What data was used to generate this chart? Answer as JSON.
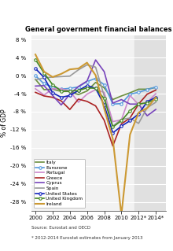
{
  "title": "General government financial balances",
  "ylabel": "% of GDP",
  "source_text": "Source: Eurostat and OECD\n* 2012-2014 Eurostat estimates from January 2013",
  "ylim": [
    -30,
    9
  ],
  "yticks": [
    8,
    4,
    0,
    -4,
    -8,
    -12,
    -16,
    -20,
    -24,
    -28
  ],
  "ytick_labels": [
    "8 %",
    "4 %",
    "0 %",
    "-4 %",
    "-8 %",
    "-12 %",
    "-16 %",
    "-20 %",
    "-24 %",
    "-28 %"
  ],
  "xlim": [
    1999.5,
    2015.2
  ],
  "xtick_vals": [
    2000,
    2002,
    2004,
    2006,
    2008,
    2010,
    2012,
    2014
  ],
  "xtick_labels": [
    "2000",
    "2002",
    "2004",
    "2006",
    "2008",
    "2010",
    "2012*",
    "2014*"
  ],
  "shaded_start": 2011.5,
  "bg_color": "#f2f2f2",
  "shaded_color": "#e0e0e0",
  "grid_color": "#ffffff",
  "series": {
    "Italy": {
      "color": "#6b8f3e",
      "linewidth": 1.2,
      "marker": null,
      "markersize": 0,
      "years": [
        2000,
        2001,
        2002,
        2003,
        2004,
        2005,
        2006,
        2007,
        2008,
        2009,
        2010,
        2011,
        2012,
        2013,
        2014
      ],
      "values": [
        -0.8,
        -3.1,
        -3.0,
        -3.5,
        -3.5,
        -4.2,
        -3.4,
        -1.5,
        -2.7,
        -5.3,
        -4.5,
        -3.8,
        -3.0,
        -3.0,
        -2.6
      ]
    },
    "Eurozone": {
      "color": "#5599dd",
      "linewidth": 1.2,
      "marker": "o",
      "markersize": 2.5,
      "years": [
        2000,
        2001,
        2002,
        2003,
        2004,
        2005,
        2006,
        2007,
        2008,
        2009,
        2010,
        2011,
        2012,
        2013,
        2014
      ],
      "values": [
        0.0,
        -1.8,
        -2.5,
        -3.0,
        -2.8,
        -2.5,
        -1.3,
        -0.6,
        -2.0,
        -6.3,
        -6.2,
        -4.1,
        -3.7,
        -3.1,
        -2.5
      ]
    },
    "Portugal": {
      "color": "#cc88cc",
      "linewidth": 1.2,
      "marker": null,
      "markersize": 0,
      "years": [
        2000,
        2001,
        2002,
        2003,
        2004,
        2005,
        2006,
        2007,
        2008,
        2009,
        2010,
        2011,
        2012,
        2013,
        2014
      ],
      "values": [
        -2.9,
        -4.3,
        -2.9,
        -2.9,
        -3.4,
        -5.9,
        -4.1,
        -3.1,
        -3.7,
        -10.2,
        -9.8,
        -4.4,
        -6.4,
        -5.9,
        -4.0
      ]
    },
    "Greece": {
      "color": "#aa2222",
      "linewidth": 1.2,
      "marker": null,
      "markersize": 0,
      "years": [
        2000,
        2001,
        2002,
        2003,
        2004,
        2005,
        2006,
        2007,
        2008,
        2009,
        2010,
        2011,
        2012,
        2013,
        2014
      ],
      "values": [
        -3.7,
        -4.5,
        -4.8,
        -5.6,
        -7.5,
        -5.2,
        -5.7,
        -6.7,
        -9.9,
        -15.6,
        -10.7,
        -9.4,
        -6.3,
        -4.1,
        -3.2
      ]
    },
    "Cyprus": {
      "color": "#7744bb",
      "linewidth": 1.2,
      "marker": null,
      "markersize": 0,
      "years": [
        2000,
        2001,
        2002,
        2003,
        2004,
        2005,
        2006,
        2007,
        2008,
        2009,
        2010,
        2011,
        2012,
        2013,
        2014
      ],
      "values": [
        -2.3,
        -2.2,
        -4.4,
        -6.5,
        -4.1,
        -2.4,
        -1.2,
        3.5,
        0.9,
        -6.1,
        -5.3,
        -6.3,
        -6.3,
        -8.9,
        -7.5
      ]
    },
    "Spain": {
      "color": "#999999",
      "linewidth": 1.2,
      "marker": null,
      "markersize": 0,
      "years": [
        2000,
        2001,
        2002,
        2003,
        2004,
        2005,
        2006,
        2007,
        2008,
        2009,
        2010,
        2011,
        2012,
        2013,
        2014
      ],
      "values": [
        -0.9,
        -0.5,
        -0.3,
        -0.2,
        -0.1,
        1.3,
        2.4,
        1.9,
        -4.5,
        -11.2,
        -9.7,
        -9.4,
        -10.6,
        -7.1,
        -5.9
      ]
    },
    "United States": {
      "color": "#1122bb",
      "linewidth": 1.2,
      "marker": "o",
      "markersize": 2.5,
      "years": [
        2000,
        2001,
        2002,
        2003,
        2004,
        2005,
        2006,
        2007,
        2008,
        2009,
        2010,
        2011,
        2012,
        2013,
        2014
      ],
      "values": [
        1.6,
        -0.4,
        -3.8,
        -4.8,
        -4.4,
        -3.3,
        -2.2,
        -2.8,
        -6.5,
        -12.7,
        -11.2,
        -10.0,
        -8.5,
        -5.8,
        -4.8
      ]
    },
    "United Kingdom": {
      "color": "#448822",
      "linewidth": 1.2,
      "marker": "o",
      "markersize": 2.5,
      "years": [
        2000,
        2001,
        2002,
        2003,
        2004,
        2005,
        2006,
        2007,
        2008,
        2009,
        2010,
        2011,
        2012,
        2013,
        2014
      ],
      "values": [
        3.6,
        0.6,
        -2.0,
        -3.4,
        -3.4,
        -3.3,
        -2.7,
        -2.8,
        -5.1,
        -11.4,
        -10.0,
        -7.8,
        -6.3,
        -6.0,
        -5.2
      ]
    },
    "Ireland": {
      "color": "#cc9933",
      "linewidth": 1.5,
      "marker": null,
      "markersize": 0,
      "years": [
        2000,
        2001,
        2002,
        2003,
        2004,
        2005,
        2006,
        2007,
        2008,
        2009,
        2010,
        2011,
        2012,
        2013,
        2014
      ],
      "values": [
        4.7,
        0.9,
        -0.3,
        0.4,
        1.4,
        1.6,
        2.9,
        0.1,
        -7.3,
        -14.0,
        -30.9,
        -13.1,
        -8.2,
        -7.2,
        -4.8
      ]
    }
  },
  "series_order": [
    "Italy",
    "Eurozone",
    "Portugal",
    "Greece",
    "Cyprus",
    "Spain",
    "United States",
    "United Kingdom",
    "Ireland"
  ]
}
